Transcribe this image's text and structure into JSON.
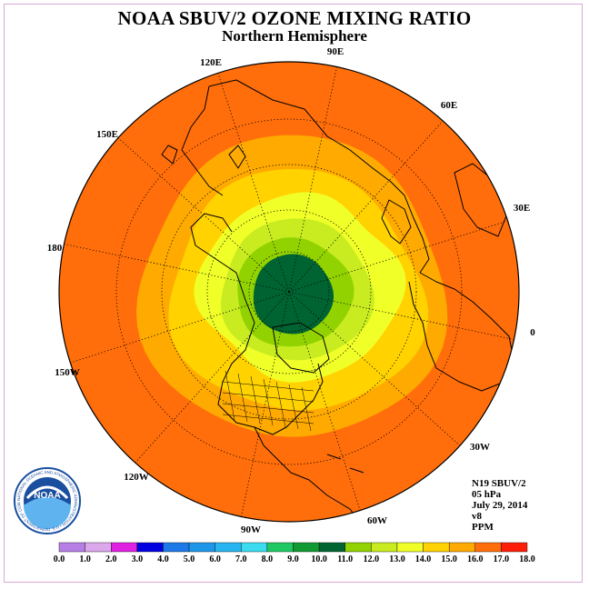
{
  "title": "NOAA SBUV/2 OZONE MIXING RATIO",
  "subtitle": "Northern Hemisphere",
  "longitude_labels": [
    "90E",
    "60E",
    "30E",
    "0",
    "30W",
    "60W",
    "90W",
    "120W",
    "150W",
    "180",
    "150E",
    "120E"
  ],
  "info": {
    "instrument": "N19 SBUV/2",
    "pressure": "05 hPa",
    "date": "July 29, 2014",
    "version": "v8",
    "units": "PPM"
  },
  "logo": {
    "name": "NOAA",
    "ring_text": "NATIONAL OCEANIC AND ATMOSPHERIC ADMINISTRATION • U.S. DEPARTMENT OF COMMERCE"
  },
  "colorbar": {
    "ticks": [
      "0.0",
      "1.0",
      "2.0",
      "3.0",
      "4.0",
      "5.0",
      "6.0",
      "7.0",
      "8.0",
      "9.0",
      "10.0",
      "11.0",
      "12.0",
      "13.0",
      "14.0",
      "15.0",
      "16.0",
      "17.0",
      "18.0"
    ],
    "colors": [
      "#b77fe6",
      "#dca8ec",
      "#e020e0",
      "#0000e0",
      "#1f78e8",
      "#1e96e8",
      "#28b4f0",
      "#3cdcf0",
      "#20c864",
      "#129a32",
      "#006432",
      "#92d200",
      "#c8ec20",
      "#f0ff28",
      "#ffd200",
      "#ffaa00",
      "#ff6e0a",
      "#ff1e0a",
      "#8c5028"
    ]
  },
  "chart_data": {
    "type": "polar-contour-map",
    "projection": "north polar stereographic",
    "field": "ozone mixing ratio at 5 hPa",
    "units": "PPM",
    "levels": [
      0,
      1,
      2,
      3,
      4,
      5,
      6,
      7,
      8,
      9,
      10,
      11,
      12,
      13,
      14,
      15,
      16,
      17,
      18
    ],
    "bands_shown": [
      {
        "range": [
          9,
          10
        ],
        "region": "north pole cap",
        "color": "#006432"
      },
      {
        "range": [
          10,
          11
        ],
        "region": "near-polar ring",
        "color": "#92d200"
      },
      {
        "range": [
          11,
          12
        ],
        "region": "high latitudes",
        "color": "#c8ec20"
      },
      {
        "range": [
          12,
          13
        ],
        "region": "high-mid latitudes",
        "color": "#f0ff28"
      },
      {
        "range": [
          13,
          14
        ],
        "region": "mid latitudes",
        "color": "#ffd200"
      },
      {
        "range": [
          14,
          15
        ],
        "region": "mid-low latitudes",
        "color": "#ffaa00"
      },
      {
        "range": [
          15,
          16
        ],
        "region": "low latitudes to equator",
        "color": "#ff6e0a"
      }
    ]
  }
}
